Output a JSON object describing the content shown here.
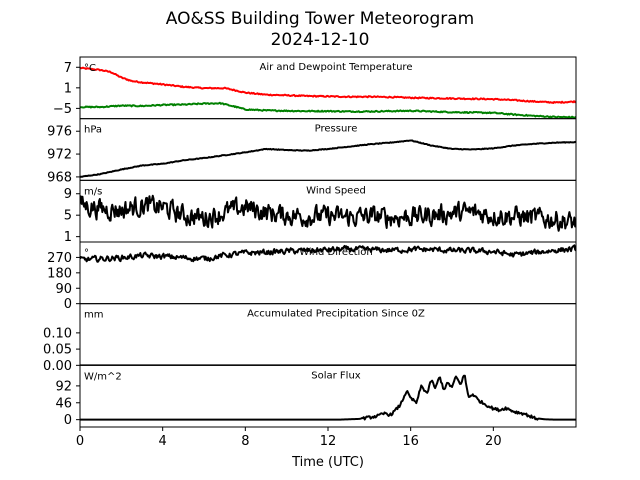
{
  "figure": {
    "title_line1": "AO&SS Building Tower Meteorogram",
    "title_line2": "2024-12-10",
    "xlabel": "Time (UTC)",
    "x_ticks": [
      "0",
      "4",
      "8",
      "12",
      "16",
      "20"
    ],
    "xlim": [
      0,
      24
    ]
  },
  "chart_data": [
    {
      "type": "line",
      "title": "Air and Dewpoint Temperature",
      "unit": "°C",
      "ylim": [
        -8,
        10
      ],
      "y_ticks": [
        7,
        1,
        -5
      ],
      "y_tick_labels": [
        "7",
        "1",
        "−5"
      ],
      "series": [
        {
          "color": "#ff0000",
          "x": [
            0,
            1,
            1.5,
            2,
            2.5,
            3,
            4,
            5,
            6,
            7,
            7.5,
            8,
            9,
            10,
            11,
            12,
            13,
            14,
            15,
            16,
            17,
            18,
            19,
            20,
            21,
            22,
            23,
            24
          ],
          "values": [
            6.8,
            6.2,
            5.6,
            4.0,
            3.0,
            2.6,
            2.0,
            1.3,
            0.9,
            0.9,
            0.3,
            -0.4,
            -1.0,
            -1.2,
            -1.4,
            -1.5,
            -1.6,
            -1.6,
            -1.7,
            -1.9,
            -2.0,
            -2.1,
            -2.2,
            -2.3,
            -2.6,
            -3.0,
            -3.3,
            -3.0
          ]
        },
        {
          "color": "#008000",
          "x": [
            0,
            1,
            2,
            3,
            4,
            5,
            6,
            6.8,
            7.5,
            8,
            9,
            10,
            11,
            12,
            13,
            14,
            15,
            16,
            17,
            18,
            19,
            20,
            21,
            22,
            23,
            24
          ],
          "values": [
            -4.6,
            -4.6,
            -4.2,
            -4.3,
            -4.0,
            -3.9,
            -3.6,
            -3.5,
            -4.5,
            -5.3,
            -5.6,
            -5.7,
            -5.8,
            -5.8,
            -5.9,
            -5.9,
            -5.8,
            -5.7,
            -5.9,
            -6.1,
            -6.2,
            -6.3,
            -6.8,
            -7.2,
            -7.5,
            -7.6
          ]
        }
      ]
    },
    {
      "type": "line",
      "title": "Pressure",
      "unit": "hPa",
      "ylim": [
        967.4,
        978.2
      ],
      "y_ticks": [
        976,
        972,
        968
      ],
      "y_tick_labels": [
        "976",
        "972",
        "968"
      ],
      "series": [
        {
          "color": "#000000",
          "x": [
            0,
            1,
            2,
            3,
            4,
            5,
            6,
            7,
            8,
            9,
            10,
            11,
            12,
            13,
            14,
            15,
            16,
            17,
            18,
            19,
            20,
            21,
            22,
            23,
            24
          ],
          "values": [
            968.0,
            968.5,
            969.3,
            970.0,
            970.3,
            970.9,
            971.3,
            971.8,
            972.3,
            972.9,
            972.7,
            972.6,
            972.9,
            973.3,
            973.7,
            974.0,
            974.4,
            973.5,
            972.9,
            972.8,
            973.0,
            973.5,
            973.8,
            974.0,
            974.1
          ]
        }
      ]
    },
    {
      "type": "line",
      "title": "Wind Speed",
      "unit": "m/s",
      "ylim": [
        0,
        11.5
      ],
      "y_ticks": [
        9,
        5,
        1
      ],
      "y_tick_labels": [
        "9",
        "5",
        "1"
      ],
      "series": [
        {
          "color": "#000000",
          "noise": 1.6,
          "x": [
            0,
            1,
            2,
            3,
            4,
            5,
            6,
            7,
            8,
            9,
            10,
            11,
            12,
            13,
            14,
            15,
            16,
            17,
            18,
            19,
            20,
            21,
            22,
            23,
            24
          ],
          "values": [
            7.0,
            6.2,
            6.0,
            6.8,
            6.5,
            5.0,
            4.5,
            5.5,
            6.5,
            5.5,
            5.0,
            4.8,
            4.8,
            4.6,
            4.8,
            4.6,
            4.8,
            5.0,
            5.4,
            5.5,
            5.0,
            4.8,
            4.5,
            4.2,
            3.5
          ]
        }
      ]
    },
    {
      "type": "line",
      "title": "Wind Direction",
      "unit": "°",
      "ylim": [
        0,
        360
      ],
      "y_ticks": [
        270,
        180,
        90,
        0
      ],
      "y_tick_labels": [
        "270",
        "180",
        "90",
        "0"
      ],
      "series": [
        {
          "color": "#000000",
          "noise": 14,
          "x": [
            0,
            1,
            2,
            3,
            4,
            5,
            6,
            7,
            8,
            9,
            10,
            11,
            12,
            13,
            14,
            15,
            16,
            17,
            18,
            19,
            20,
            21,
            22,
            23,
            24
          ],
          "values": [
            255,
            262,
            268,
            280,
            276,
            268,
            262,
            282,
            296,
            300,
            306,
            310,
            314,
            318,
            315,
            312,
            316,
            316,
            310,
            308,
            304,
            284,
            298,
            312,
            320
          ]
        }
      ]
    },
    {
      "type": "line",
      "title": "Accumulated Precipitation Since 0Z",
      "unit": "mm",
      "ylim": [
        0,
        0.19
      ],
      "y_ticks": [
        0.1,
        0.05,
        0.0
      ],
      "y_tick_labels": [
        "0.10",
        "0.05",
        "0.00"
      ],
      "series": [
        {
          "color": "#000000",
          "x": [
            0,
            24
          ],
          "values": [
            0,
            0
          ]
        }
      ]
    },
    {
      "type": "line",
      "title": "Solar Flux",
      "unit": "W/m^2",
      "ylim": [
        -20,
        148
      ],
      "y_ticks": [
        92,
        46,
        0
      ],
      "y_tick_labels": [
        "92",
        "46",
        "0"
      ],
      "series": [
        {
          "color": "#000000",
          "x": [
            0,
            12.5,
            13.5,
            14.0,
            14.4,
            14.8,
            15.0,
            15.2,
            15.5,
            15.8,
            16.0,
            16.3,
            16.5,
            16.8,
            17.0,
            17.2,
            17.4,
            17.6,
            17.8,
            18.0,
            18.2,
            18.4,
            18.6,
            18.8,
            19.0,
            19.3,
            19.6,
            20.0,
            20.3,
            20.6,
            21.0,
            21.5,
            22.0,
            22.5,
            23.0,
            24.0
          ],
          "values": [
            0,
            0,
            2,
            6,
            10,
            18,
            12,
            22,
            40,
            78,
            58,
            46,
            92,
            72,
            108,
            85,
            118,
            82,
            100,
            88,
            118,
            95,
            124,
            60,
            70,
            52,
            42,
            30,
            26,
            32,
            22,
            16,
            4,
            1,
            0,
            0
          ]
        }
      ]
    }
  ]
}
